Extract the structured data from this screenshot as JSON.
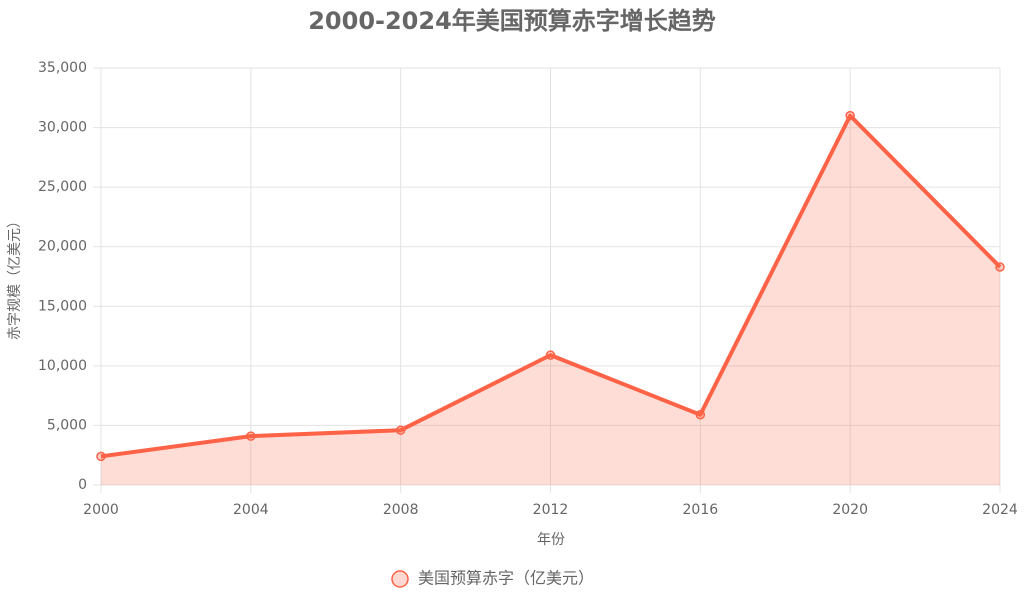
{
  "chart_data": {
    "type": "line",
    "title": "2000-2024年美国预算赤字增长趋势",
    "x_label": "年份",
    "y_label": "赤字规模（亿美元）",
    "categories": [
      "2000",
      "2004",
      "2008",
      "2012",
      "2016",
      "2020",
      "2024"
    ],
    "series": [
      {
        "name": "美国预算赤字（亿美元）",
        "color": "#ff6347",
        "fill": true,
        "values": [
          2400,
          4100,
          4600,
          10900,
          5900,
          31000,
          18300
        ]
      }
    ],
    "ylim": [
      0,
      35000
    ],
    "yticks": [
      0,
      {
        "value": 5000,
        "label": "5,000"
      },
      {
        "value": 10000,
        "label": "10,000"
      },
      {
        "value": 15000,
        "label": "15,000"
      },
      {
        "value": 20000,
        "label": "20,000"
      },
      {
        "value": 25000,
        "label": "25,000"
      },
      {
        "value": 30000,
        "label": "30,000"
      },
      {
        "value": 35000,
        "label": "35,000"
      }
    ],
    "grid": true,
    "legend": "bottom"
  }
}
